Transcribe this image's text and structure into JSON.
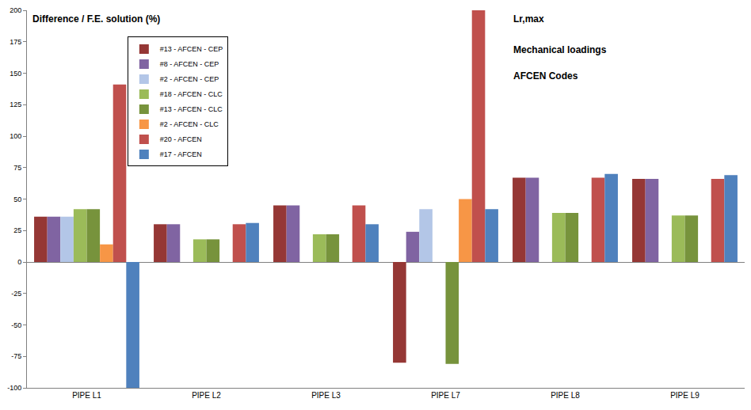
{
  "chart_data": {
    "type": "bar",
    "annotations": [
      "Difference / F.E. solution (%)",
      "Lr,max",
      "Mechanical loadings",
      "AFCEN Codes"
    ],
    "categories": [
      "PIPE L1",
      "PIPE L2",
      "PIPE L3",
      "PIPE L7",
      "PIPE L8",
      "PIPE L9"
    ],
    "series": [
      {
        "name": "#13 - AFCEN - CEP",
        "color": "#953735",
        "values": [
          36,
          30,
          45,
          -80,
          67,
          66
        ]
      },
      {
        "name": "#8 - AFCEN - CEP",
        "color": "#8064A2",
        "values": [
          36,
          30,
          45,
          24,
          67,
          66
        ]
      },
      {
        "name": "#2 - AFCEN - CEP",
        "color": "#B3C6E7",
        "values": [
          36,
          null,
          null,
          42,
          null,
          null
        ]
      },
      {
        "name": "#18 - AFCEN - CLC",
        "color": "#9BBB59",
        "values": [
          42,
          18,
          22,
          null,
          39,
          37
        ]
      },
      {
        "name": "#13 - AFCEN - CLC",
        "color": "#77933C",
        "values": [
          42,
          18,
          22,
          -81,
          39,
          37
        ]
      },
      {
        "name": "#2 - AFCEN - CLC",
        "color": "#F79646",
        "values": [
          14,
          null,
          null,
          50,
          null,
          null
        ]
      },
      {
        "name": "#20 - AFCEN",
        "color": "#C0504D",
        "values": [
          141,
          30,
          45,
          200,
          67,
          66
        ]
      },
      {
        "name": "#17 - AFCEN",
        "color": "#4F81BD",
        "values": [
          -100,
          31,
          30,
          42,
          70,
          69
        ]
      }
    ],
    "ylim": [
      -100,
      200
    ],
    "yticks": [
      -100,
      -75,
      -50,
      -25,
      0,
      25,
      50,
      75,
      100,
      125,
      150,
      175,
      200
    ],
    "grid": false,
    "legend": "upper left"
  }
}
